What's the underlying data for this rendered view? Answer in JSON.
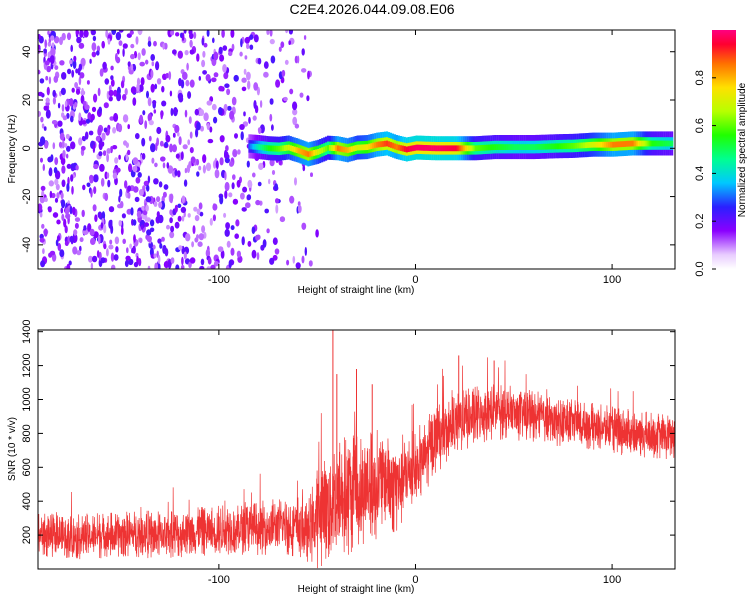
{
  "title": "C2E4.2026.044.09.08.E06",
  "chart_data": [
    {
      "type": "heatmap",
      "xlabel": "Height of straight line (km)",
      "ylabel": "Frequency (Hz)",
      "xlim": [
        -192,
        132
      ],
      "ylim": [
        -50,
        49
      ],
      "x_ticks": [
        -100,
        0,
        100
      ],
      "y_ticks": [
        -40,
        -20,
        0,
        20,
        40
      ],
      "noise_region": {
        "x_range": [
          -192,
          -50
        ],
        "y_range": [
          -50,
          49
        ],
        "amplitude": 0.2
      },
      "track": {
        "x": [
          -85,
          -80,
          -75,
          -70,
          -65,
          -60,
          -55,
          -50,
          -45,
          -40,
          -35,
          -30,
          -25,
          -20,
          -15,
          -10,
          -5,
          0,
          10,
          20,
          30,
          40,
          50,
          60,
          70,
          80,
          90,
          100,
          110,
          120,
          130
        ],
        "y": [
          0.8,
          0.5,
          0.0,
          -0.2,
          0.3,
          -1.0,
          -2.5,
          -1.5,
          0.2,
          0.0,
          -0.8,
          0.3,
          0.5,
          1.5,
          2.0,
          0.5,
          -0.5,
          0.3,
          0.0,
          0.0,
          0.0,
          0.5,
          0.5,
          0.5,
          0.8,
          1.0,
          1.5,
          1.5,
          2.0,
          2.0,
          2.0
        ],
        "amplitude": [
          0.3,
          0.45,
          0.55,
          0.6,
          0.7,
          0.8,
          0.85,
          0.7,
          0.6,
          0.85,
          0.8,
          0.7,
          0.75,
          0.85,
          0.9,
          0.85,
          0.95,
          0.98,
          0.98,
          0.95,
          0.6,
          0.55,
          0.5,
          0.5,
          0.55,
          0.6,
          0.7,
          0.85,
          0.85,
          0.55,
          0.5
        ]
      },
      "colorbar": {
        "label": "Normalized spectral amplitude",
        "range": [
          0.0,
          1.0
        ],
        "ticks": [
          0.0,
          0.2,
          0.4,
          0.6,
          0.8
        ]
      }
    },
    {
      "type": "line",
      "xlabel": "Height of straight line (km)",
      "ylabel": "SNR (10 * v/v)",
      "xlim": [
        -192,
        132
      ],
      "ylim": [
        0,
        1410
      ],
      "x_ticks": [
        -100,
        0,
        100
      ],
      "y_ticks": [
        200,
        400,
        600,
        800,
        1000,
        1200,
        1400
      ],
      "color": "#ee3333",
      "series": [
        {
          "x": [
            -192,
            -180,
            -170,
            -160,
            -150,
            -140,
            -130,
            -120,
            -110,
            -100,
            -90,
            -80,
            -70,
            -60,
            -55,
            -50,
            -45,
            -40,
            -35,
            -30,
            -25,
            -20,
            -15,
            -10,
            -5,
            0,
            10,
            20,
            30,
            40,
            50,
            60,
            70,
            80,
            90,
            100,
            110,
            120,
            132
          ],
          "center": [
            200,
            195,
            190,
            200,
            205,
            210,
            200,
            205,
            220,
            230,
            235,
            240,
            255,
            250,
            220,
            300,
            380,
            410,
            430,
            470,
            480,
            500,
            520,
            500,
            540,
            580,
            760,
            850,
            900,
            930,
            920,
            900,
            870,
            860,
            840,
            820,
            800,
            790,
            780
          ],
          "spread": [
            130,
            130,
            135,
            140,
            135,
            140,
            145,
            140,
            145,
            150,
            150,
            160,
            170,
            180,
            180,
            300,
            360,
            380,
            380,
            350,
            330,
            330,
            320,
            300,
            260,
            240,
            200,
            190,
            180,
            170,
            160,
            150,
            150,
            140,
            140,
            140,
            140,
            140,
            140
          ]
        }
      ],
      "spikes": [
        {
          "x": -42,
          "y": 1410
        },
        {
          "x": -40,
          "y": 1150
        },
        {
          "x": -30,
          "y": 1180
        },
        {
          "x": -22,
          "y": 1090
        },
        {
          "x": 22,
          "y": 1260
        },
        {
          "x": 40,
          "y": 1230
        }
      ]
    }
  ]
}
